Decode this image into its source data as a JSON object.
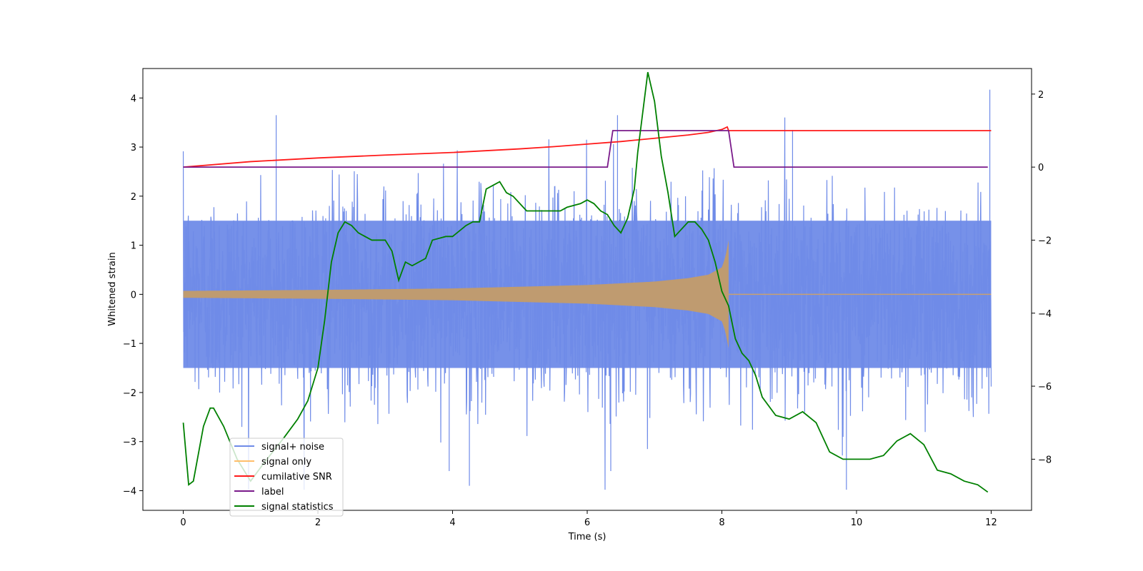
{
  "chart_data": {
    "type": "line",
    "title": "",
    "xlabel": "Time (s)",
    "ylabel": "Whitened strain",
    "xlim": [
      -0.6,
      12.6
    ],
    "ylim_left": [
      -4.4,
      4.6
    ],
    "ylim_right": [
      -9.4,
      2.7
    ],
    "x_ticks": [
      0,
      2,
      4,
      6,
      8,
      10,
      12
    ],
    "x_tick_labels": [
      "0",
      "2",
      "4",
      "6",
      "8",
      "10",
      "12"
    ],
    "y_ticks_left": [
      -4,
      -3,
      -2,
      -1,
      0,
      1,
      2,
      3,
      4
    ],
    "y_tick_labels_left": [
      "−4",
      "−3",
      "−2",
      "−1",
      "0",
      "1",
      "2",
      "3",
      "4"
    ],
    "y_ticks_right": [
      -8,
      -6,
      -4,
      -2,
      0,
      2
    ],
    "y_tick_labels_right": [
      "−8",
      "−6",
      "−4",
      "−2",
      "0",
      "2"
    ],
    "grid": false,
    "legend_position": "lower-left",
    "series": [
      {
        "name": "signal+ noise",
        "axis": "left",
        "color": "#6f8be8",
        "kind": "noise",
        "x_range": [
          0,
          12
        ],
        "core_amplitude": 1.5,
        "peak_range": [
          -3.98,
          4.17
        ],
        "samples": 2400
      },
      {
        "name": "signal only",
        "axis": "left",
        "color": "#ffbe6b",
        "kind": "chirp",
        "merger_time": 8.1,
        "envelope": {
          "t": [
            0,
            2,
            4,
            6,
            7,
            7.5,
            7.8,
            8.0,
            8.05,
            8.1
          ],
          "amp": [
            0.07,
            0.09,
            0.12,
            0.19,
            0.26,
            0.33,
            0.4,
            0.55,
            0.75,
            1.1
          ]
        },
        "ringdown_end": 8.15,
        "x_end": 12
      },
      {
        "name": "cumilative SNR",
        "axis": "right",
        "color": "#ff1a1a",
        "x": [
          0,
          1,
          2,
          3,
          4,
          5,
          5.5,
          6,
          6.5,
          7,
          7.5,
          7.8,
          8.0,
          8.08,
          8.1,
          12
        ],
        "y": [
          0.0,
          0.15,
          0.25,
          0.33,
          0.4,
          0.5,
          0.56,
          0.63,
          0.7,
          0.79,
          0.88,
          0.95,
          1.03,
          1.1,
          1.0,
          1.0
        ]
      },
      {
        "name": "label",
        "axis": "right",
        "color": "#7a1a8a",
        "x": [
          0,
          6.3,
          6.38,
          8.1,
          8.18,
          11.95
        ],
        "y": [
          0,
          0,
          1,
          1,
          0,
          0
        ]
      },
      {
        "name": "signal statistics",
        "axis": "right",
        "color": "#008000",
        "x": [
          0,
          0.08,
          0.15,
          0.3,
          0.4,
          0.45,
          0.6,
          0.8,
          1.0,
          1.2,
          1.5,
          1.7,
          1.85,
          2.0,
          2.1,
          2.2,
          2.3,
          2.4,
          2.5,
          2.6,
          2.8,
          3.0,
          3.1,
          3.2,
          3.3,
          3.4,
          3.6,
          3.7,
          3.9,
          4.0,
          4.2,
          4.3,
          4.4,
          4.5,
          4.6,
          4.7,
          4.8,
          4.9,
          5.0,
          5.1,
          5.2,
          5.4,
          5.6,
          5.7,
          5.9,
          6.0,
          6.1,
          6.2,
          6.3,
          6.4,
          6.5,
          6.6,
          6.7,
          6.75,
          6.9,
          7.0,
          7.1,
          7.2,
          7.3,
          7.5,
          7.6,
          7.7,
          7.8,
          7.9,
          8.0,
          8.1,
          8.2,
          8.3,
          8.4,
          8.5,
          8.6,
          8.8,
          9.0,
          9.2,
          9.4,
          9.6,
          9.8,
          10.0,
          10.2,
          10.4,
          10.6,
          10.8,
          11.0,
          11.2,
          11.4,
          11.6,
          11.8,
          11.95
        ],
        "y": [
          -7.0,
          -8.7,
          -8.6,
          -7.1,
          -6.6,
          -6.6,
          -7.1,
          -8.0,
          -8.6,
          -8.1,
          -7.4,
          -6.9,
          -6.4,
          -5.5,
          -4.2,
          -2.6,
          -1.8,
          -1.5,
          -1.6,
          -1.8,
          -2.0,
          -2.0,
          -2.3,
          -3.1,
          -2.6,
          -2.7,
          -2.5,
          -2.0,
          -1.9,
          -1.9,
          -1.6,
          -1.5,
          -1.5,
          -0.6,
          -0.5,
          -0.4,
          -0.7,
          -0.8,
          -1.0,
          -1.2,
          -1.2,
          -1.2,
          -1.2,
          -1.1,
          -1.0,
          -0.9,
          -1.0,
          -1.2,
          -1.3,
          -1.6,
          -1.8,
          -1.4,
          -0.6,
          0.4,
          2.6,
          1.8,
          0.3,
          -0.7,
          -1.9,
          -1.5,
          -1.5,
          -1.7,
          -2.0,
          -2.6,
          -3.4,
          -3.8,
          -4.7,
          -5.1,
          -5.3,
          -5.7,
          -6.3,
          -6.8,
          -6.9,
          -6.7,
          -7.0,
          -7.8,
          -8.0,
          -8.0,
          -8.0,
          -7.9,
          -7.5,
          -7.3,
          -7.6,
          -8.3,
          -8.4,
          -8.6,
          -8.7,
          -8.9
        ]
      }
    ]
  }
}
